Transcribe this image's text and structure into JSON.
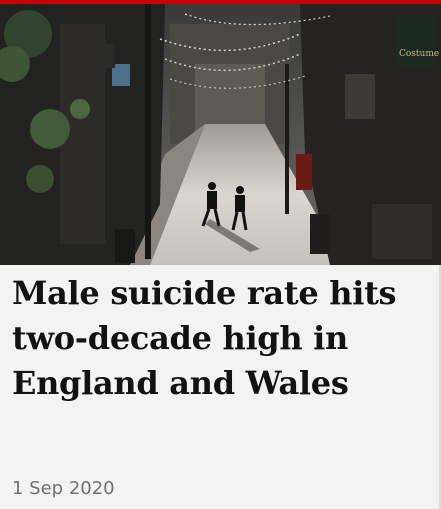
{
  "article": {
    "headline_lines": [
      "Male suicide rate hits",
      "two-decade high in",
      "England and Wales"
    ],
    "date": "1 Sep 2020"
  },
  "image": {
    "subject": "street-photo",
    "storefront_sign": "Costume"
  },
  "colors": {
    "accent_rule": "#c70000",
    "card_background": "#f3f3f3",
    "headline_text": "#121212",
    "date_text": "#707070"
  }
}
